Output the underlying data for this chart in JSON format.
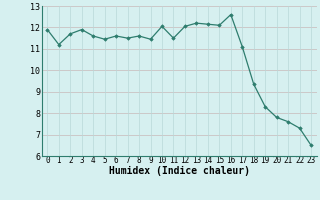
{
  "x": [
    0,
    1,
    2,
    3,
    4,
    5,
    6,
    7,
    8,
    9,
    10,
    11,
    12,
    13,
    14,
    15,
    16,
    17,
    18,
    19,
    20,
    21,
    22,
    23
  ],
  "y": [
    11.9,
    11.2,
    11.7,
    11.9,
    11.6,
    11.45,
    11.6,
    11.5,
    11.6,
    11.45,
    12.05,
    11.5,
    12.05,
    12.2,
    12.15,
    12.1,
    12.6,
    11.1,
    9.35,
    8.3,
    7.8,
    7.6,
    7.3,
    6.5
  ],
  "line_color": "#2e7d6e",
  "marker": "D",
  "marker_size": 1.8,
  "line_width": 0.9,
  "bg_color": "#d6f0f0",
  "grid_color_h": "#c8b8b8",
  "grid_color_v": "#b8d8d8",
  "xlabel": "Humidex (Indice chaleur)",
  "xlabel_fontsize": 7,
  "xtick_fontsize": 5.5,
  "ytick_fontsize": 6,
  "xlim": [
    -0.5,
    23.5
  ],
  "ylim": [
    6,
    13
  ],
  "yticks": [
    6,
    7,
    8,
    9,
    10,
    11,
    12,
    13
  ],
  "xticks": [
    0,
    1,
    2,
    3,
    4,
    5,
    6,
    7,
    8,
    9,
    10,
    11,
    12,
    13,
    14,
    15,
    16,
    17,
    18,
    19,
    20,
    21,
    22,
    23
  ]
}
